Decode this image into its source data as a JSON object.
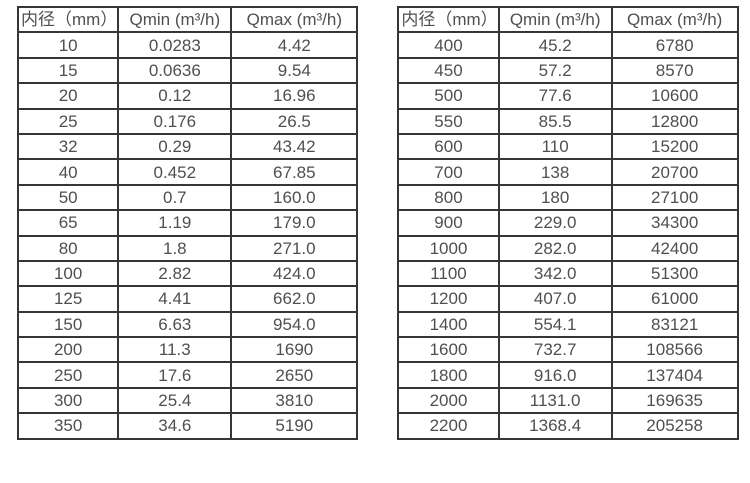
{
  "page": {
    "background_color": "#ffffff",
    "text_color": "#4f4f4f",
    "border_color": "#363636"
  },
  "left_table": {
    "headers": [
      "内径（mm）",
      "Qmin (m³/h)",
      "Qmax (m³/h)"
    ],
    "rows": [
      [
        "10",
        "0.0283",
        "4.42"
      ],
      [
        "15",
        "0.0636",
        "9.54"
      ],
      [
        "20",
        "0.12",
        "16.96"
      ],
      [
        "25",
        "0.176",
        "26.5"
      ],
      [
        "32",
        "0.29",
        "43.42"
      ],
      [
        "40",
        "0.452",
        "67.85"
      ],
      [
        "50",
        "0.7",
        "160.0"
      ],
      [
        "65",
        "1.19",
        "179.0"
      ],
      [
        "80",
        "1.8",
        "271.0"
      ],
      [
        "100",
        "2.82",
        "424.0"
      ],
      [
        "125",
        "4.41",
        "662.0"
      ],
      [
        "150",
        "6.63",
        "954.0"
      ],
      [
        "200",
        "11.3",
        "1690"
      ],
      [
        "250",
        "17.6",
        "2650"
      ],
      [
        "300",
        "25.4",
        "3810"
      ],
      [
        "350",
        "34.6",
        "5190"
      ]
    ]
  },
  "right_table": {
    "headers": [
      "内径（mm）",
      "Qmin (m³/h)",
      "Qmax (m³/h)"
    ],
    "rows": [
      [
        "400",
        "45.2",
        "6780"
      ],
      [
        "450",
        "57.2",
        "8570"
      ],
      [
        "500",
        "77.6",
        "10600"
      ],
      [
        "550",
        "85.5",
        "12800"
      ],
      [
        "600",
        "110",
        "15200"
      ],
      [
        "700",
        "138",
        "20700"
      ],
      [
        "800",
        "180",
        "27100"
      ],
      [
        "900",
        "229.0",
        "34300"
      ],
      [
        "1000",
        "282.0",
        "42400"
      ],
      [
        "1100",
        "342.0",
        "51300"
      ],
      [
        "1200",
        "407.0",
        "61000"
      ],
      [
        "1400",
        "554.1",
        "83121"
      ],
      [
        "1600",
        "732.7",
        "108566"
      ],
      [
        "1800",
        "916.0",
        "137404"
      ],
      [
        "2000",
        "1131.0",
        "169635"
      ],
      [
        "2200",
        "1368.4",
        "205258"
      ]
    ]
  }
}
